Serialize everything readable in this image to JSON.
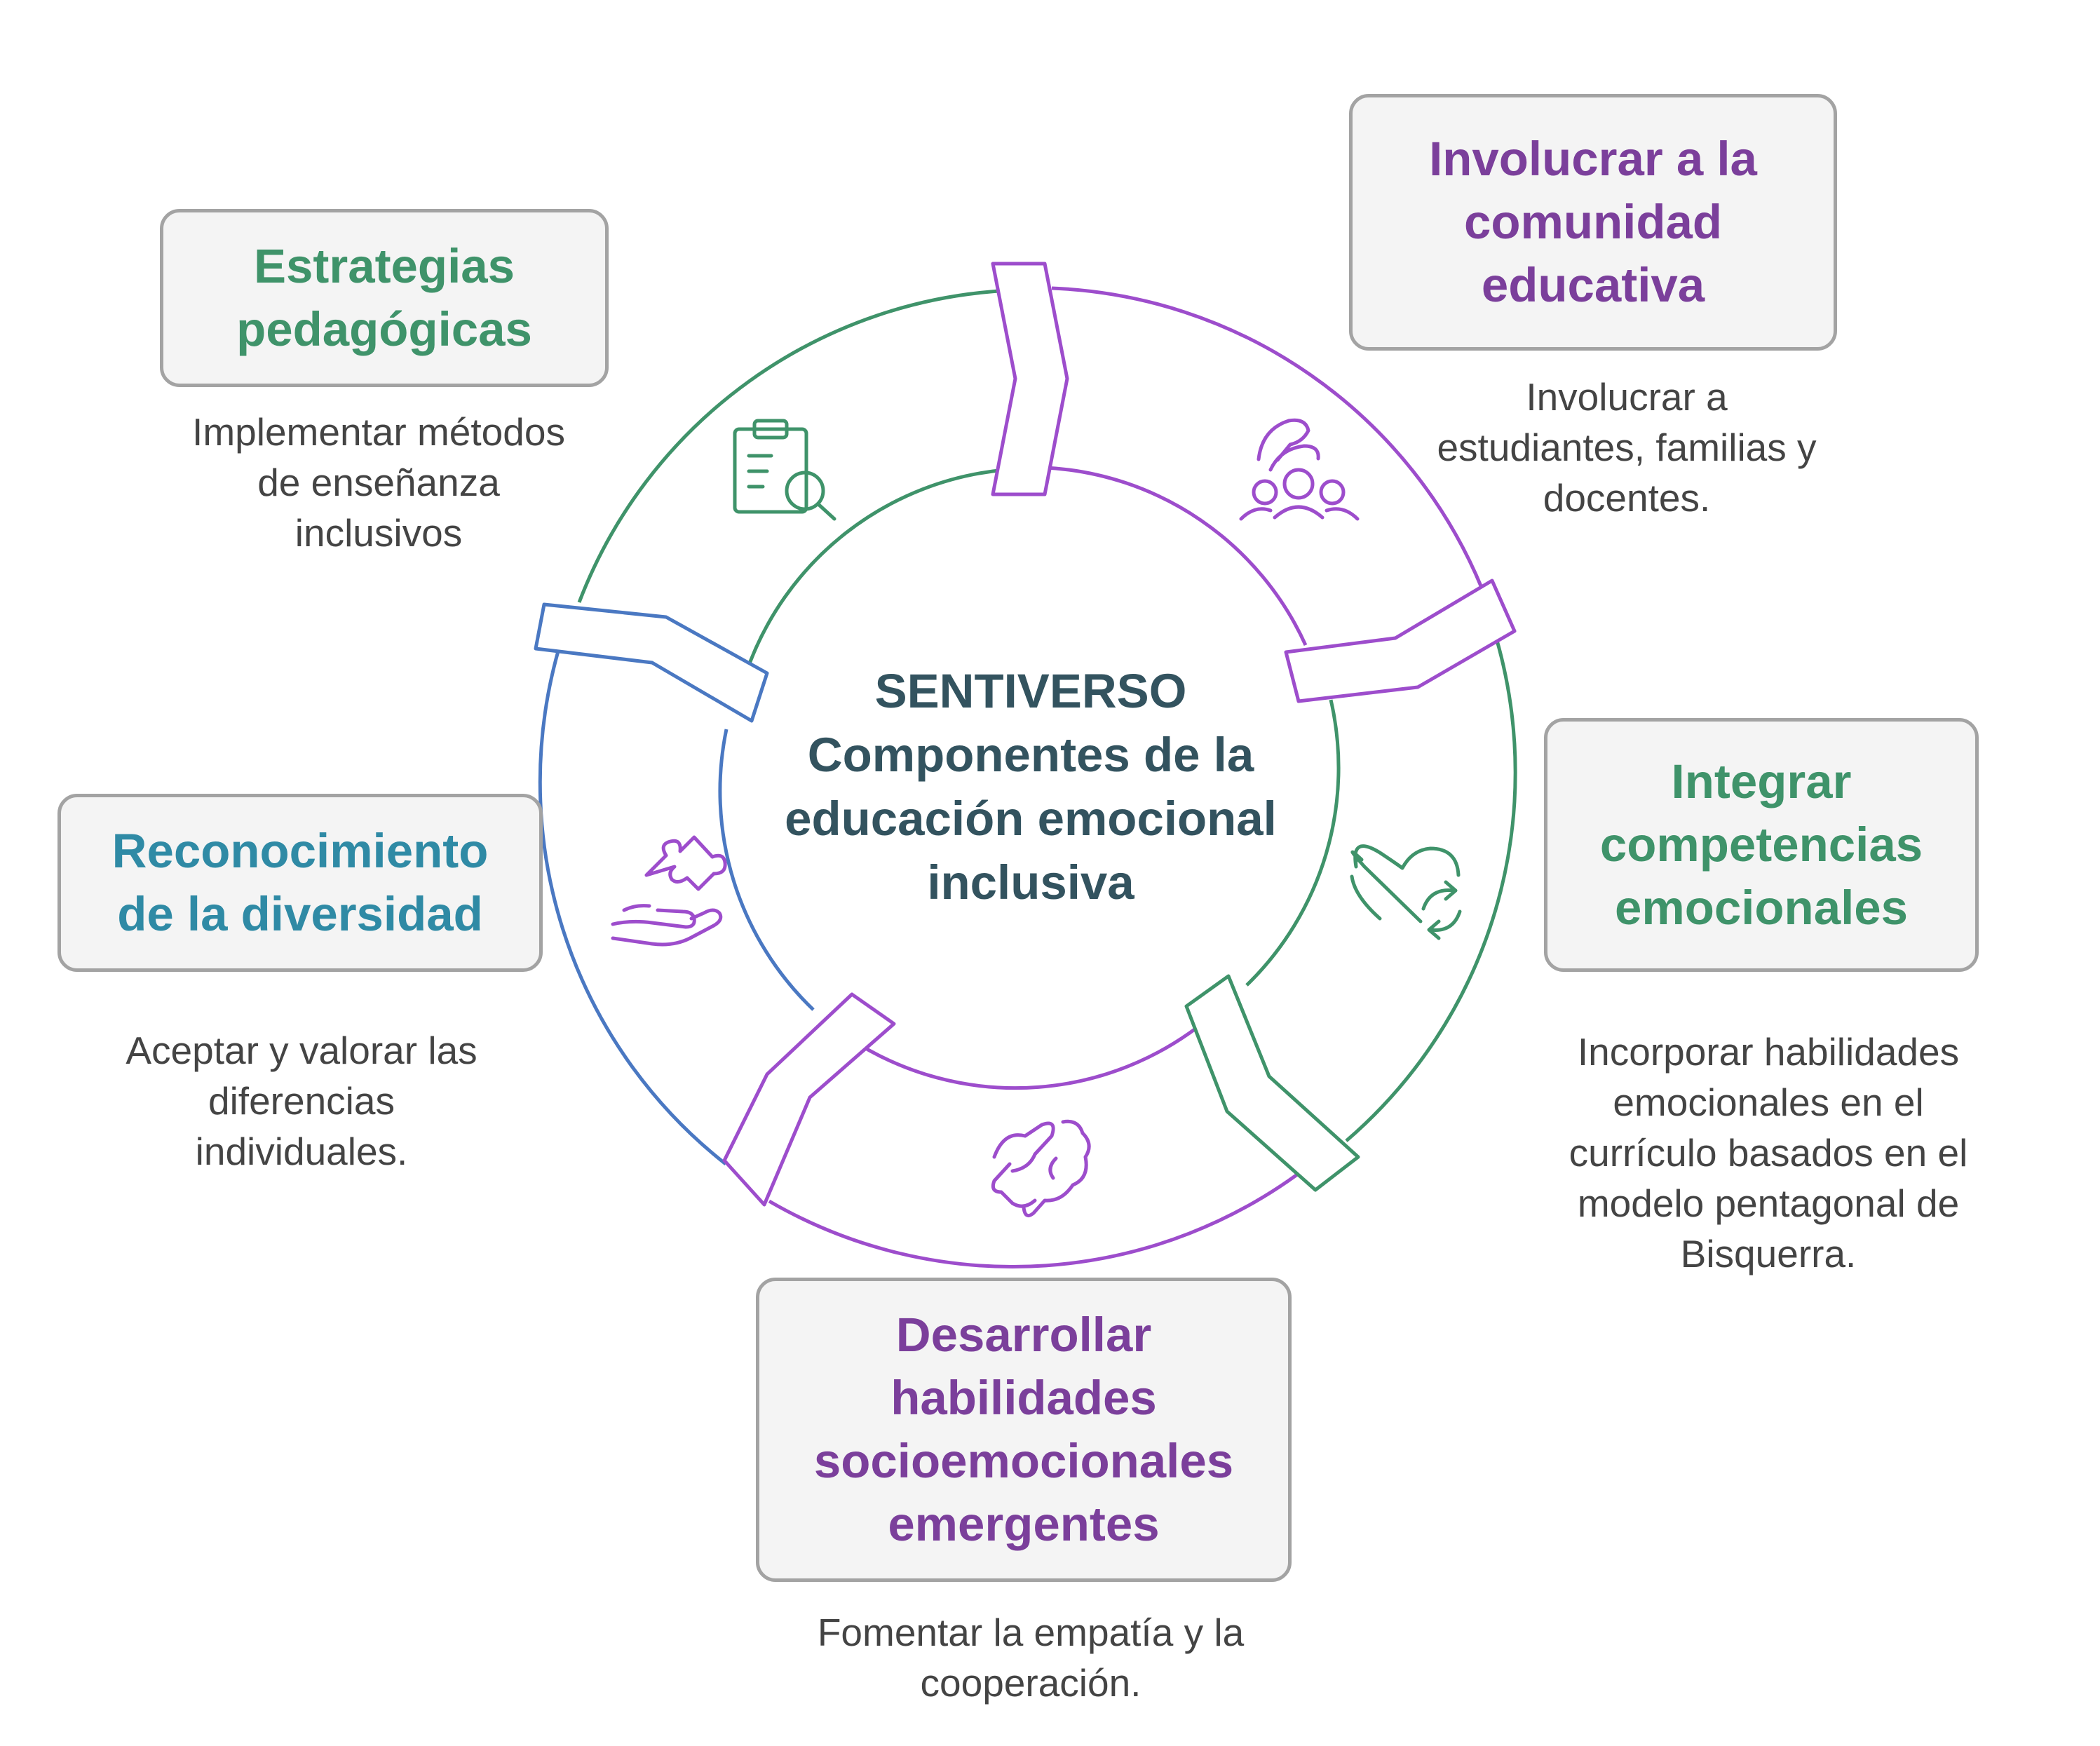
{
  "center": {
    "title": "SENTIVERSO\nComponentes de la\neducación emocional\ninclusiva"
  },
  "colors": {
    "green": "#3f936a",
    "purple": "#9d4dcc",
    "blue": "#4a78c2",
    "title_purple": "#7b3f9b",
    "title_teal": "#2f8aa5",
    "center_text": "#33535f"
  },
  "segments": [
    {
      "title": "Estrategias\npedagógicas",
      "description": "Implementar métodos\nde enseñanza\ninclusivos",
      "icon": "clipboard-search-icon"
    },
    {
      "title": "Involucrar a la\ncomunidad\neducativa",
      "description": "Involucrar a\nestudiantes, familias y\ndocentes.",
      "icon": "community-hands-icon"
    },
    {
      "title": "Integrar\ncompetencias\nemocionales",
      "description": "Incorporar habilidades\nemocionales en el\ncurrículo basados en el\nmodelo pentagonal de\nBisquerra.",
      "icon": "heart-refresh-icon"
    },
    {
      "title": "Desarrollar\nhabilidades\nsocioemocionales\nemergentes",
      "description": "Fomentar la empatía y la\ncooperación.",
      "icon": "hands-cooperation-icon"
    },
    {
      "title": "Reconocimiento\nde la diversidad",
      "description": "Aceptar y valorar las\ndiferencias\nindividuales.",
      "icon": "hand-puzzle-icon"
    }
  ]
}
